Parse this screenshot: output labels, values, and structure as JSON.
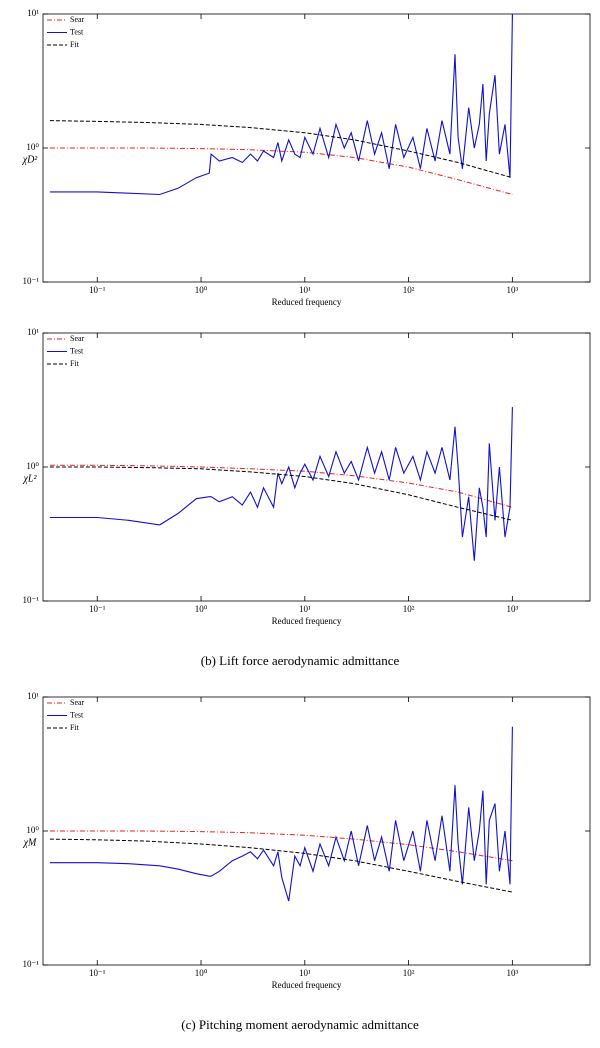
{
  "chart_data": [
    {
      "type": "line",
      "ylabel": "χD²",
      "xlabel": "Reduced frequency",
      "log_x": true,
      "log_y": true,
      "legend": "upper left",
      "xlim": [
        0.03,
        5600
      ],
      "ylim": [
        0.1,
        10
      ],
      "xticks": [
        {
          "value": 0.1,
          "label": "10⁻¹"
        },
        {
          "value": 1,
          "label": "10⁰"
        },
        {
          "value": 10,
          "label": "10¹"
        },
        {
          "value": 100,
          "label": "10²"
        },
        {
          "value": 1000,
          "label": "10³"
        }
      ],
      "yticks": [
        {
          "value": 0.1,
          "label": "10⁻¹"
        },
        {
          "value": 1,
          "label": "10⁰"
        },
        {
          "value": 10,
          "label": "10¹"
        }
      ],
      "series": [
        {
          "name": "Sear",
          "color": "#e8241c",
          "style": "dashdot",
          "x": [
            0.035,
            0.1,
            0.3,
            1,
            3,
            10,
            30,
            100,
            300,
            1000
          ],
          "values": [
            1,
            1,
            1,
            0.99,
            0.97,
            0.93,
            0.85,
            0.72,
            0.58,
            0.45
          ]
        },
        {
          "name": "Test",
          "color": "#1010d0",
          "style": "solid",
          "x": [
            0.035,
            0.1,
            0.2,
            0.4,
            0.6,
            0.9,
            1.2,
            1.25,
            1.5,
            2,
            2.5,
            3,
            3.5,
            4,
            5,
            5.5,
            6,
            7,
            8,
            9,
            10,
            12,
            14,
            17,
            20,
            24,
            28,
            33,
            40,
            47,
            55,
            65,
            75,
            90,
            110,
            130,
            150,
            180,
            210,
            250,
            280,
            300,
            330,
            380,
            430,
            480,
            520,
            560,
            600,
            680,
            750,
            850,
            950,
            1000
          ],
          "values": [
            0.47,
            0.47,
            0.46,
            0.45,
            0.5,
            0.6,
            0.65,
            0.9,
            0.8,
            0.85,
            0.78,
            0.9,
            0.8,
            0.95,
            0.85,
            1.1,
            0.8,
            1.15,
            0.9,
            0.85,
            1.2,
            0.9,
            1.4,
            0.85,
            1.5,
            1.0,
            1.3,
            0.8,
            1.6,
            0.9,
            1.3,
            0.7,
            1.5,
            0.85,
            1.2,
            0.7,
            1.4,
            0.8,
            1.6,
            0.9,
            5.0,
            1.2,
            0.7,
            2.0,
            1.0,
            1.5,
            3.0,
            0.8,
            1.8,
            3.5,
            0.9,
            1.5,
            0.6,
            10
          ]
        },
        {
          "name": "Fit",
          "color": "#000000",
          "style": "dashed",
          "x": [
            0.035,
            0.1,
            0.3,
            1,
            3,
            10,
            30,
            100,
            300,
            1000
          ],
          "values": [
            1.6,
            1.58,
            1.55,
            1.5,
            1.42,
            1.3,
            1.15,
            0.95,
            0.78,
            0.6
          ]
        }
      ]
    },
    {
      "type": "line",
      "ylabel": "χL²",
      "xlabel": "Reduced frequency",
      "caption": "(b) Lift force aerodynamic admittance",
      "log_x": true,
      "log_y": true,
      "legend": "upper left",
      "xlim": [
        0.03,
        5600
      ],
      "ylim": [
        0.1,
        10
      ],
      "xticks": [
        {
          "value": 0.1,
          "label": "10⁻¹"
        },
        {
          "value": 1,
          "label": "10⁰"
        },
        {
          "value": 10,
          "label": "10¹"
        },
        {
          "value": 100,
          "label": "10²"
        },
        {
          "value": 1000,
          "label": "10³"
        }
      ],
      "yticks": [
        {
          "value": 0.1,
          "label": "10⁻¹"
        },
        {
          "value": 1,
          "label": "10⁰"
        },
        {
          "value": 10,
          "label": "10¹"
        }
      ],
      "series": [
        {
          "name": "Sear",
          "color": "#e8241c",
          "style": "dashdot",
          "x": [
            0.035,
            0.1,
            0.3,
            1,
            3,
            10,
            30,
            100,
            300,
            1000
          ],
          "values": [
            1.03,
            1.03,
            1.02,
            1.0,
            0.97,
            0.93,
            0.86,
            0.76,
            0.65,
            0.5
          ]
        },
        {
          "name": "Test",
          "color": "#1010d0",
          "style": "solid",
          "x": [
            0.035,
            0.1,
            0.2,
            0.4,
            0.6,
            0.9,
            1.2,
            1.25,
            1.5,
            2,
            2.5,
            3,
            3.5,
            4,
            5,
            5.5,
            6,
            7,
            8,
            9,
            10,
            12,
            14,
            17,
            20,
            24,
            28,
            33,
            40,
            47,
            55,
            65,
            75,
            90,
            110,
            130,
            150,
            180,
            210,
            250,
            280,
            300,
            330,
            380,
            430,
            480,
            520,
            560,
            600,
            680,
            750,
            850,
            950,
            1000
          ],
          "values": [
            0.42,
            0.42,
            0.4,
            0.37,
            0.45,
            0.58,
            0.6,
            0.6,
            0.55,
            0.6,
            0.52,
            0.65,
            0.5,
            0.7,
            0.5,
            0.9,
            0.75,
            1.0,
            0.7,
            0.9,
            1.05,
            0.8,
            1.2,
            0.85,
            1.3,
            0.9,
            1.1,
            0.8,
            1.4,
            0.9,
            1.3,
            0.8,
            1.4,
            0.9,
            1.2,
            0.8,
            1.3,
            0.9,
            1.4,
            0.8,
            2.0,
            1.0,
            0.3,
            0.6,
            0.2,
            0.7,
            0.5,
            0.3,
            1.5,
            0.4,
            1.0,
            0.3,
            0.5,
            2.8
          ]
        },
        {
          "name": "Fit",
          "color": "#000000",
          "style": "dashed",
          "x": [
            0.035,
            0.1,
            0.3,
            1,
            3,
            10,
            30,
            100,
            300,
            1000
          ],
          "values": [
            1.0,
            1.0,
            0.99,
            0.97,
            0.92,
            0.85,
            0.75,
            0.62,
            0.5,
            0.4
          ]
        }
      ]
    },
    {
      "type": "line",
      "ylabel": "χM",
      "xlabel": "Reduced frequency",
      "caption": "(c) Pitching moment aerodynamic admittance",
      "log_x": true,
      "log_y": true,
      "legend": "upper left",
      "xlim": [
        0.03,
        5600
      ],
      "ylim": [
        0.1,
        10
      ],
      "xticks": [
        {
          "value": 0.1,
          "label": "10⁻¹"
        },
        {
          "value": 1,
          "label": "10⁰"
        },
        {
          "value": 10,
          "label": "10¹"
        },
        {
          "value": 100,
          "label": "10²"
        },
        {
          "value": 1000,
          "label": "10³"
        }
      ],
      "yticks": [
        {
          "value": 0.1,
          "label": "10⁻¹"
        },
        {
          "value": 1,
          "label": "10⁰"
        },
        {
          "value": 10,
          "label": "10¹"
        }
      ],
      "series": [
        {
          "name": "Sear",
          "color": "#e8241c",
          "style": "dashdot",
          "x": [
            0.035,
            0.1,
            0.3,
            1,
            3,
            10,
            30,
            100,
            300,
            1000
          ],
          "values": [
            1.0,
            1.0,
            1.0,
            0.99,
            0.97,
            0.93,
            0.87,
            0.79,
            0.7,
            0.6
          ]
        },
        {
          "name": "Test",
          "color": "#1010d0",
          "style": "solid",
          "x": [
            0.035,
            0.1,
            0.2,
            0.4,
            0.6,
            0.9,
            1.2,
            1.25,
            1.5,
            2,
            2.5,
            3,
            3.5,
            4,
            5,
            5.5,
            6,
            7,
            8,
            9,
            10,
            12,
            14,
            17,
            20,
            24,
            28,
            33,
            40,
            47,
            55,
            65,
            75,
            90,
            110,
            130,
            150,
            180,
            210,
            250,
            280,
            300,
            330,
            380,
            430,
            480,
            520,
            560,
            600,
            680,
            750,
            850,
            950,
            1000
          ],
          "values": [
            0.58,
            0.58,
            0.57,
            0.55,
            0.52,
            0.48,
            0.46,
            0.46,
            0.5,
            0.6,
            0.65,
            0.7,
            0.62,
            0.72,
            0.55,
            0.7,
            0.45,
            0.3,
            0.65,
            0.55,
            0.75,
            0.5,
            0.8,
            0.55,
            0.9,
            0.6,
            1.0,
            0.55,
            1.1,
            0.6,
            0.9,
            0.5,
            1.2,
            0.6,
            1.0,
            0.5,
            1.2,
            0.6,
            1.3,
            0.5,
            2.2,
            0.8,
            0.4,
            1.5,
            0.6,
            1.0,
            2.0,
            0.4,
            1.2,
            1.6,
            0.5,
            1.0,
            0.4,
            6.0
          ]
        },
        {
          "name": "Fit",
          "color": "#000000",
          "style": "dashed",
          "x": [
            0.035,
            0.1,
            0.3,
            1,
            3,
            10,
            30,
            100,
            300,
            1000
          ],
          "values": [
            0.87,
            0.86,
            0.84,
            0.8,
            0.75,
            0.68,
            0.6,
            0.5,
            0.42,
            0.35
          ]
        }
      ]
    }
  ]
}
